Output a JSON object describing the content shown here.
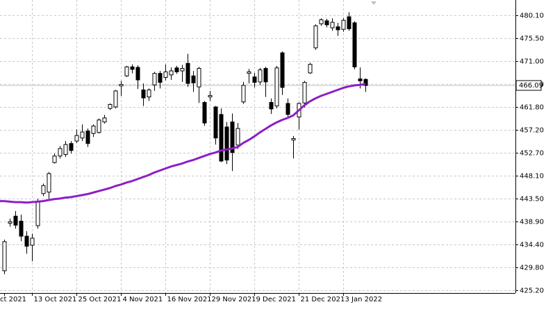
{
  "chart_data": {
    "type": "candlestick",
    "categories": [
      "ct 2021",
      null,
      null,
      null,
      null,
      "13 Oct 2021",
      null,
      null,
      null,
      null,
      null,
      null,
      null,
      "25 Oct 2021",
      null,
      null,
      null,
      null,
      null,
      null,
      null,
      "4 Nov 2021",
      null,
      null,
      null,
      null,
      null,
      null,
      null,
      "16 Nov 2021",
      null,
      null,
      null,
      null,
      null,
      null,
      null,
      "29 Nov 2021",
      null,
      null,
      null,
      null,
      null,
      null,
      null,
      "9 Dec 2021",
      null,
      null,
      null,
      null,
      null,
      null,
      null,
      "21 Dec 2021",
      null,
      null,
      null,
      null,
      null,
      null,
      null,
      "3 Jan 2022",
      null,
      null,
      null,
      null
    ],
    "open": [
      429.1,
      438.6,
      440.0,
      439.0,
      436.0,
      434.2,
      438.1,
      444.5,
      444.8,
      450.7,
      452.0,
      452.3,
      454.5,
      455.0,
      455.6,
      457.0,
      456.5,
      456.7,
      458.8,
      461.5,
      461.8,
      466.0,
      468.0,
      469.8,
      469.7,
      465.2,
      463.8,
      466.2,
      468.5,
      467.7,
      468.2,
      469.6,
      469.0,
      470.5,
      468.0,
      465.8,
      462.7,
      463.8,
      461.8,
      460.3,
      457.8,
      458.8,
      454.2,
      462.8,
      468.5,
      467.8,
      466.8,
      469.5,
      462.7,
      462.0,
      472.6,
      462.5,
      455.2,
      459.8,
      462.6,
      468.6,
      473.6,
      478.4,
      479.0,
      477.6,
      477.8,
      477.3,
      479.8,
      478.6,
      467.4,
      467.3
    ],
    "high": [
      435.3,
      439.5,
      441.0,
      440.3,
      437.0,
      436.5,
      443.5,
      446.5,
      448.8,
      452.5,
      454.0,
      455.0,
      455.0,
      457.3,
      458.3,
      457.5,
      458.3,
      459.5,
      460.2,
      462.5,
      465.2,
      467.0,
      470.0,
      470.3,
      470.1,
      466.5,
      465.5,
      468.8,
      469.0,
      470.3,
      469.7,
      470.0,
      470.2,
      472.4,
      469.0,
      469.8,
      463.0,
      465.0,
      462.0,
      461.5,
      458.8,
      460.5,
      458.6,
      466.8,
      469.4,
      468.6,
      469.6,
      469.8,
      463.5,
      470.0,
      472.9,
      463.5,
      456.0,
      462.7,
      467.0,
      470.6,
      478.3,
      479.5,
      479.4,
      479.5,
      478.6,
      479.5,
      480.7,
      478.9,
      469.7,
      467.5
    ],
    "low": [
      428.4,
      437.9,
      437.5,
      435.0,
      432.5,
      431.0,
      437.5,
      444.0,
      443.2,
      450.5,
      451.5,
      451.8,
      452.5,
      454.6,
      455.0,
      453.8,
      455.8,
      456.5,
      458.5,
      461.2,
      461.5,
      464.0,
      467.8,
      468.5,
      465.4,
      462.0,
      463.0,
      465.0,
      465.5,
      467.1,
      467.2,
      468.4,
      466.8,
      465.8,
      464.8,
      462.6,
      458.0,
      463.0,
      454.3,
      450.8,
      450.4,
      449.0,
      453.4,
      462.4,
      466.5,
      465.7,
      466.2,
      463.8,
      460.4,
      461.5,
      464.2,
      459.6,
      451.5,
      457.3,
      461.7,
      468.4,
      473.2,
      478.0,
      477.7,
      477.0,
      476.0,
      476.8,
      477.0,
      469.3,
      465.5,
      464.8
    ],
    "close": [
      434.9,
      438.9,
      438.2,
      436.0,
      434.0,
      435.6,
      442.8,
      446.1,
      448.5,
      452.0,
      453.5,
      454.3,
      453.1,
      456.1,
      456.8,
      454.5,
      458.0,
      459.2,
      459.6,
      462.3,
      465.0,
      466.3,
      469.8,
      469.3,
      467.2,
      463.6,
      465.2,
      468.5,
      466.7,
      468.8,
      469.0,
      468.8,
      469.5,
      466.5,
      466.6,
      469.5,
      458.6,
      464.1,
      455.6,
      451.0,
      451.2,
      452.7,
      457.5,
      466.1,
      468.8,
      466.7,
      469.2,
      466.8,
      461.4,
      469.6,
      465.7,
      460.3,
      455.5,
      462.5,
      466.7,
      470.3,
      478.0,
      479.2,
      478.2,
      478.7,
      477.2,
      479.1,
      477.4,
      469.8,
      467.0,
      466.09
    ],
    "ma": {
      "color": "#8c1ec8",
      "values": [
        443.0,
        442.9,
        442.8,
        442.8,
        442.7,
        442.8,
        442.9,
        443.0,
        443.2,
        443.4,
        443.5,
        443.7,
        443.8,
        444.0,
        444.2,
        444.4,
        444.7,
        445.0,
        445.3,
        445.6,
        446.0,
        446.3,
        446.7,
        447.0,
        447.4,
        447.8,
        448.2,
        448.7,
        449.1,
        449.5,
        449.9,
        450.2,
        450.5,
        450.9,
        451.2,
        451.6,
        452.0,
        452.4,
        452.7,
        453.1,
        453.3,
        453.5,
        453.8,
        454.6,
        455.2,
        455.9,
        456.7,
        457.4,
        458.1,
        458.7,
        459.2,
        459.6,
        460.1,
        461.1,
        462.1,
        462.9,
        463.5,
        464.0,
        464.4,
        464.8,
        465.2,
        465.6,
        465.9,
        466.1,
        466.2,
        466.4
      ]
    },
    "last_price": 466.09,
    "ylim": [
      424.65,
      483.15
    ],
    "yticks": [
      {
        "value": 480.1,
        "label": "480.10"
      },
      {
        "value": 475.5,
        "label": "475.50"
      },
      {
        "value": 471.0,
        "label": "471.00"
      },
      {
        "value": 466.4,
        "label": "466.40"
      },
      {
        "value": 461.8,
        "label": "461.80"
      },
      {
        "value": 457.2,
        "label": "457.20"
      },
      {
        "value": 452.7,
        "label": "452.70"
      },
      {
        "value": 448.1,
        "label": "448.10"
      },
      {
        "value": 443.5,
        "label": "443.50"
      },
      {
        "value": 438.9,
        "label": "438.90"
      },
      {
        "value": 434.4,
        "label": "434.40"
      },
      {
        "value": 429.8,
        "label": "429.80"
      },
      {
        "value": 425.2,
        "label": "425.20"
      }
    ],
    "grid": true,
    "up_color": "#ffffff",
    "down_color": "#000000"
  }
}
